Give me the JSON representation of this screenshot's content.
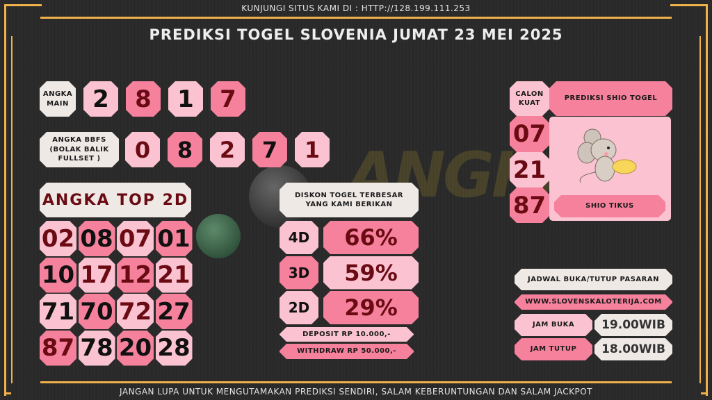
{
  "header": {
    "visit": "KUNJUNGI SITUS KAMI DI : HTTP://128.199.111.253",
    "title": "PREDIKSI TOGEL SLOVENIA JUMAT 23 MEI 2025"
  },
  "watermark": "ANGKA MAIN",
  "angka_main": {
    "label": "ANGKA MAIN",
    "digits": [
      {
        "v": "2",
        "bg": "lp",
        "c": "bk"
      },
      {
        "v": "8",
        "bg": "hp",
        "c": "dr"
      },
      {
        "v": "1",
        "bg": "lp",
        "c": "bk"
      },
      {
        "v": "7",
        "bg": "hp",
        "c": "dr"
      }
    ]
  },
  "bbfs": {
    "label": "ANGKA BBFS (BOLAK BALIK FULLSET )",
    "digits": [
      {
        "v": "0",
        "bg": "lp",
        "c": "dr"
      },
      {
        "v": "8",
        "bg": "hp",
        "c": "bk"
      },
      {
        "v": "2",
        "bg": "lp",
        "c": "dr"
      },
      {
        "v": "7",
        "bg": "hp",
        "c": "bk"
      },
      {
        "v": "1",
        "bg": "lp",
        "c": "dr"
      }
    ]
  },
  "top2d": {
    "label": "ANGKA TOP 2D",
    "rows": [
      [
        {
          "v": "02",
          "bg": "lp",
          "c": "dr"
        },
        {
          "v": "08",
          "bg": "hp",
          "c": "bk"
        },
        {
          "v": "07",
          "bg": "lp",
          "c": "dr"
        },
        {
          "v": "01",
          "bg": "hp",
          "c": "bk"
        }
      ],
      [
        {
          "v": "10",
          "bg": "hp",
          "c": "bk"
        },
        {
          "v": "17",
          "bg": "lp",
          "c": "dr"
        },
        {
          "v": "12",
          "bg": "hp",
          "c": "dr"
        },
        {
          "v": "21",
          "bg": "lp",
          "c": "dr"
        }
      ],
      [
        {
          "v": "71",
          "bg": "lp",
          "c": "bk"
        },
        {
          "v": "70",
          "bg": "hp",
          "c": "bk"
        },
        {
          "v": "72",
          "bg": "lp",
          "c": "dr"
        },
        {
          "v": "27",
          "bg": "hp",
          "c": "bk"
        }
      ],
      [
        {
          "v": "87",
          "bg": "hp",
          "c": "dr"
        },
        {
          "v": "78",
          "bg": "lp",
          "c": "bk"
        },
        {
          "v": "20",
          "bg": "hp",
          "c": "bk"
        },
        {
          "v": "28",
          "bg": "lp",
          "c": "bk"
        }
      ]
    ]
  },
  "diskon": {
    "title": "DISKON TOGEL TERBESAR YANG KAMI BERIKAN",
    "rows": [
      {
        "type": "4D",
        "pct": "66%",
        "lbg": "lp",
        "vbg": "hp"
      },
      {
        "type": "3D",
        "pct": "59%",
        "lbg": "hp",
        "vbg": "lp"
      },
      {
        "type": "2D",
        "pct": "29%",
        "lbg": "lp",
        "vbg": "hp"
      }
    ],
    "deposit": "DEPOSIT RP 10.000,-",
    "withdraw": "WITHDRAW RP 50.000,-"
  },
  "shio": {
    "calon_label": "CALON KUAT",
    "title": "PREDIKSI SHIO TOGEL",
    "numbers": [
      "07",
      "21",
      "87"
    ],
    "name": "SHIO TIKUS"
  },
  "jadwal": {
    "title": "JADWAL BUKA/TUTUP PASARAN",
    "website": "WWW.SLOVENSKALOTERIJA.COM",
    "buka_label": "JAM BUKA",
    "buka": "19.00WIB",
    "tutup_label": "JAM TUTUP",
    "tutup": "18.00WIB"
  },
  "footer": "JANGAN LUPA UNTUK MENGUTAMAKAN PREDIKSI SENDIRI, SALAM KEBERUNTUNGAN DAN SALAM JACKPOT",
  "colors": {
    "light_pink": "#fbc3d1",
    "hot_pink": "#f6819c",
    "cream": "#efe9e6",
    "gold": "#f0b14a",
    "dark_red": "#6a0b14"
  }
}
